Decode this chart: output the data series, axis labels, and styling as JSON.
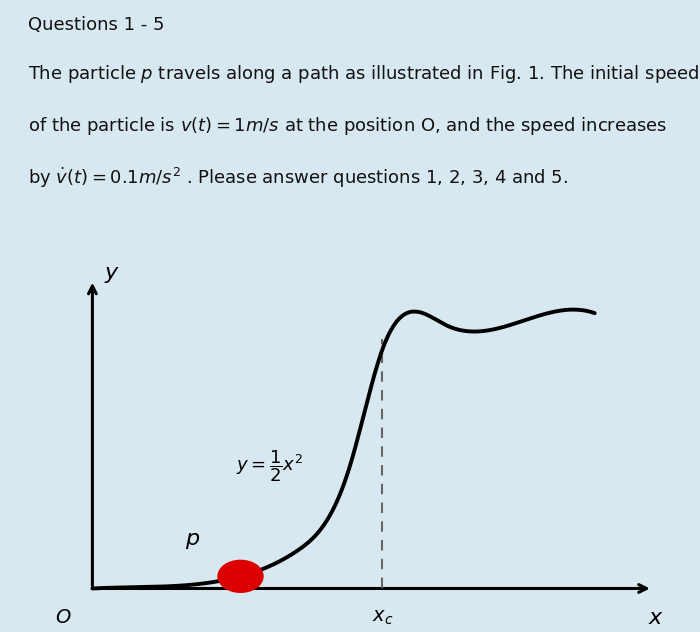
{
  "background_color": "#d8e8f0",
  "panel_background": "#ffffff",
  "title_line1": "Questions 1 - 5",
  "red_bar_color": "#dd0000",
  "curve_color": "#000000",
  "dashed_line_color": "#666666",
  "particle_color": "#dd0000",
  "curve_label": "$y = \\dfrac{1}{2}x^2$",
  "p_label": "$p$",
  "origin_label": "$O$",
  "x_label": "$x$",
  "y_label": "$y$",
  "xc_label": "$x_c$",
  "text_fontsize": 13,
  "figwidth": 7.0,
  "figheight": 6.32
}
